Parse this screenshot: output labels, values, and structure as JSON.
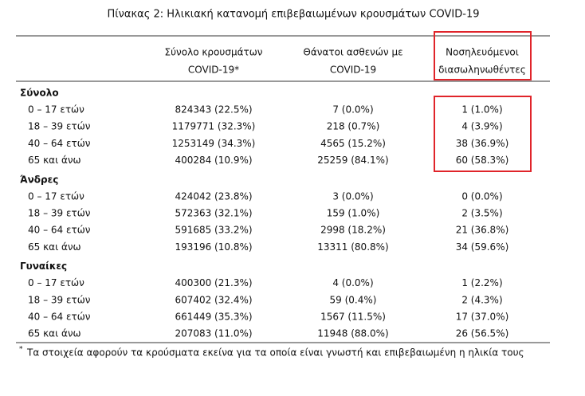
{
  "title": "Πίνακας 2: Ηλικιακή κατανομή επιβεβαιωμένων κρουσμάτων COVID-19",
  "table": {
    "headers": [
      [
        "Σύνολο κρουσμάτων",
        "COVID-19*"
      ],
      [
        "Θάνατοι ασθενών με",
        "COVID-19"
      ],
      [
        "Νοσηλευόμενοι",
        "διασωληνωθέντες"
      ]
    ],
    "groups": [
      {
        "name": "Σύνολο",
        "rows": [
          [
            "0 – 17 ετών",
            "824343 (22.5%)",
            "7 (0.0%)",
            "1 (1.0%)"
          ],
          [
            "18 – 39 ετών",
            "1179771 (32.3%)",
            "218 (0.7%)",
            "4 (3.9%)"
          ],
          [
            "40 – 64 ετών",
            "1253149 (34.3%)",
            "4565 (15.2%)",
            "38 (36.9%)"
          ],
          [
            "65 και άνω",
            "400284 (10.9%)",
            "25259 (84.1%)",
            "60 (58.3%)"
          ]
        ]
      },
      {
        "name": "Άνδρες",
        "rows": [
          [
            "0 – 17 ετών",
            "424042 (23.8%)",
            "3 (0.0%)",
            "0 (0.0%)"
          ],
          [
            "18 – 39 ετών",
            "572363 (32.1%)",
            "159 (1.0%)",
            "2 (3.5%)"
          ],
          [
            "40 – 64 ετών",
            "591685 (33.2%)",
            "2998 (18.2%)",
            "21 (36.8%)"
          ],
          [
            "65 και άνω",
            "193196 (10.8%)",
            "13311 (80.8%)",
            "34 (59.6%)"
          ]
        ]
      },
      {
        "name": "Γυναίκες",
        "rows": [
          [
            "0 – 17 ετών",
            "400300 (21.3%)",
            "4 (0.0%)",
            "1 (2.2%)"
          ],
          [
            "18 – 39 ετών",
            "607402 (32.4%)",
            "59 (0.4%)",
            "2 (4.3%)"
          ],
          [
            "40 – 64 ετών",
            "661449 (35.3%)",
            "1567 (11.5%)",
            "17 (37.0%)"
          ],
          [
            "65 και άνω",
            "207083 (11.0%)",
            "11948 (88.0%)",
            "26 (56.5%)"
          ]
        ]
      }
    ]
  },
  "footnote": {
    "marker": "*",
    "text": "Τα στοιχεία αφορούν τα κρούσματα εκείνα για τα οποία είναι γνωστή και επιβεβαιωμένη η ηλικία τους"
  }
}
